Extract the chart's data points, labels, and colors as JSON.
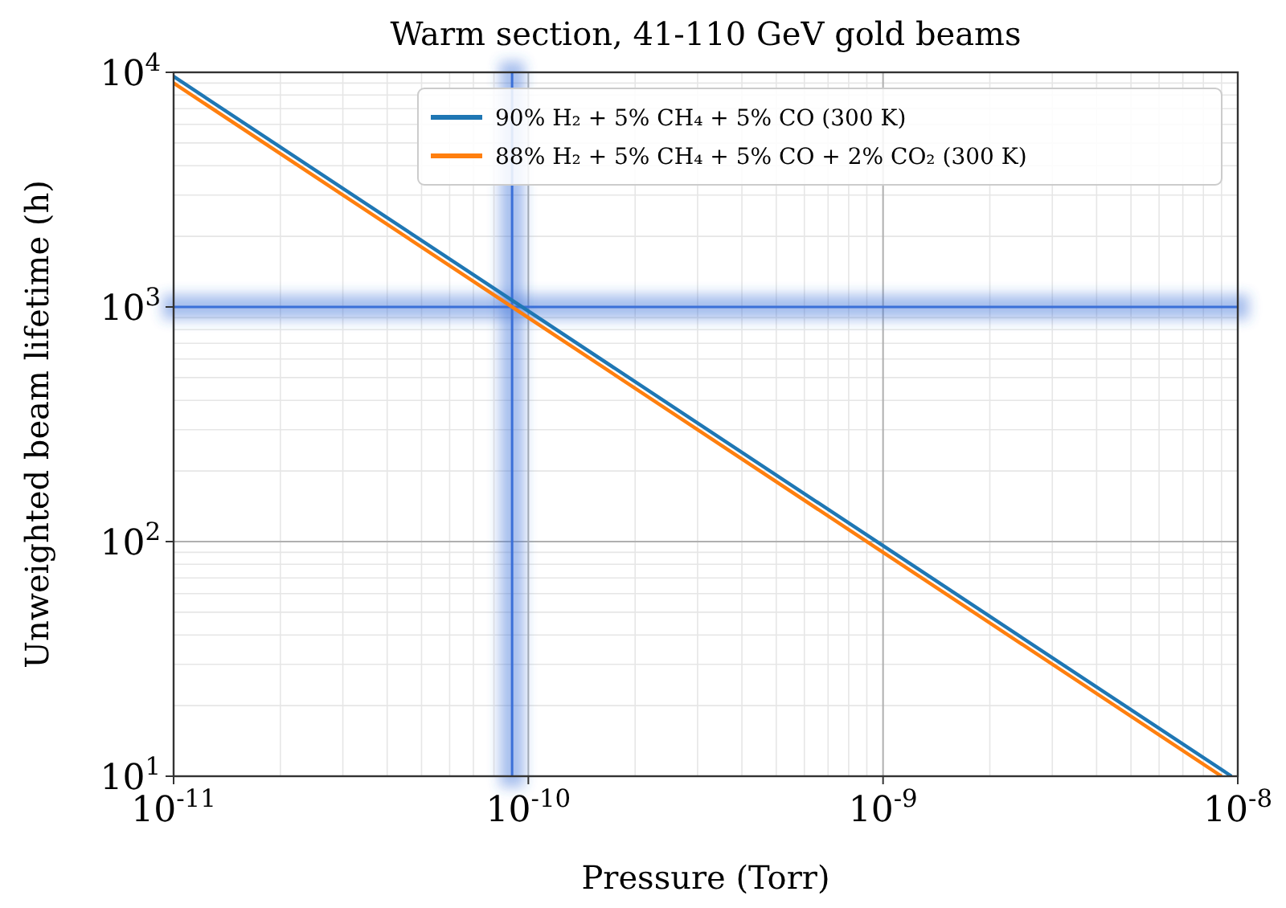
{
  "chart_data": {
    "type": "line",
    "title": "Warm section, 41-110 GeV gold beams",
    "xlabel": "Pressure (Torr)",
    "ylabel": "Unweighted beam lifetime (h)",
    "series": [
      {
        "name": "90% H₂ + 5% CH₄ + 5% CO (300 K)",
        "color": "#1f77b4",
        "x": [
          1e-11,
          1e-10,
          1e-09,
          9.6e-09
        ],
        "values": [
          9600,
          960,
          96,
          10
        ]
      },
      {
        "name": "88% H₂ + 5% CH₄ + 5% CO + 2% CO₂ (300 K)",
        "color": "#ff7f0e",
        "x": [
          1e-11,
          1e-10,
          1e-09,
          9e-09
        ],
        "values": [
          9000,
          900,
          90,
          10
        ]
      }
    ],
    "log": "xy",
    "xlim": [
      1e-11,
      1e-08
    ],
    "ylim": [
      10,
      10000
    ],
    "xticks": [
      {
        "value": 1e-11,
        "label": "10$^{-11}$"
      },
      {
        "value": 1e-10,
        "label": "10$^{-10}$"
      },
      {
        "value": 1e-09,
        "label": "10$^{-9}$"
      },
      {
        "value": 1e-08,
        "label": "10$^{-8}$"
      }
    ],
    "yticks": [
      {
        "value": 10,
        "label": "10$^{1}$"
      },
      {
        "value": 100,
        "label": "10$^{2}$"
      },
      {
        "value": 1000,
        "label": "10$^{3}$"
      },
      {
        "value": 10000,
        "label": "10$^{4}$"
      }
    ],
    "ref_lines": [
      {
        "axis": "y",
        "value": 1000,
        "color": "#3a6fd8"
      },
      {
        "axis": "x",
        "value": 9e-11,
        "color": "#3a6fd8"
      }
    ],
    "grid": true,
    "legend": "top right",
    "line_style": "solid",
    "marker": "none"
  }
}
